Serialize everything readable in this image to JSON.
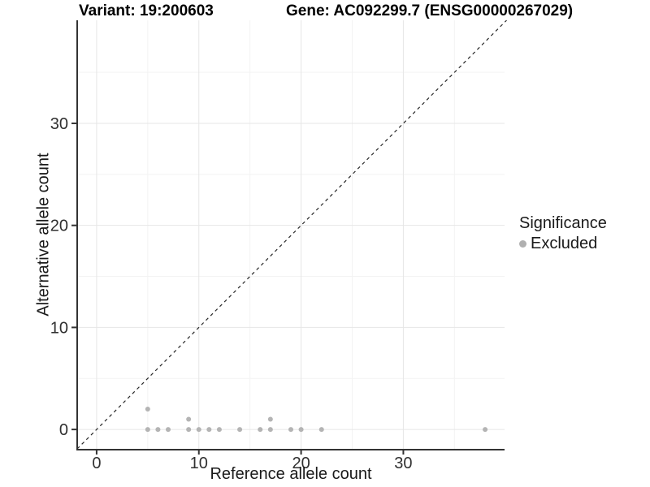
{
  "chart_data": {
    "type": "scatter",
    "titles": [
      "Variant: 19:200603",
      "Gene: AC092299.7 (ENSG00000267029)"
    ],
    "xlabel": "Reference allele count",
    "ylabel": "Alternative allele count",
    "xlim": [
      -1.9,
      39.9
    ],
    "ylim": [
      -1.9,
      40.1
    ],
    "x_ticks": [
      0,
      10,
      20,
      30
    ],
    "y_ticks": [
      0,
      10,
      20,
      30
    ],
    "x_minor_ticks": [
      5,
      15,
      25,
      35
    ],
    "y_minor_ticks": [
      5,
      15,
      25,
      35
    ],
    "grid": "major+minor",
    "legend_position": "right",
    "legend": {
      "title": "Significance",
      "entries": [
        "Excluded"
      ]
    },
    "reference_line": {
      "type": "identity y=x",
      "style": "dashed",
      "color": "#262626"
    },
    "series": [
      {
        "name": "Excluded",
        "color": "#b0b0b0",
        "marker": "circle",
        "points": [
          [
            5,
            0
          ],
          [
            6,
            0
          ],
          [
            7,
            0
          ],
          [
            9,
            0
          ],
          [
            10,
            0
          ],
          [
            11,
            0
          ],
          [
            12,
            0
          ],
          [
            14,
            0
          ],
          [
            16,
            0
          ],
          [
            17,
            0
          ],
          [
            19,
            0
          ],
          [
            20,
            0
          ],
          [
            22,
            0
          ],
          [
            38,
            0
          ],
          [
            9,
            1
          ],
          [
            17,
            1
          ],
          [
            5,
            2
          ]
        ]
      }
    ],
    "colors": {
      "background": "#ffffff",
      "grid_major": "#e6e6e6",
      "grid_minor": "#f3f3f3",
      "axis_line": "#333333",
      "tick_text": "#303030",
      "point": "#b0b0b0"
    }
  }
}
